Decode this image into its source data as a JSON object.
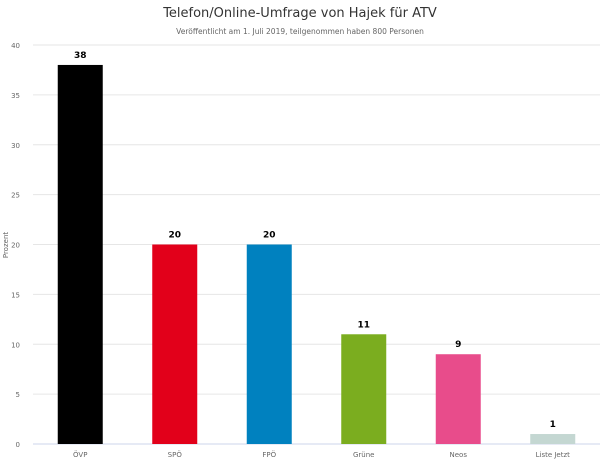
{
  "chart_data": {
    "type": "bar",
    "title": "Telefon/Online-Umfrage von Hajek für ATV",
    "subtitle": "Veröffentlicht am 1. Juli 2019, teilgenommen haben 800 Personen",
    "xlabel": "",
    "ylabel": "Prozent",
    "ylim": [
      0,
      40
    ],
    "yticks": [
      0,
      5,
      10,
      15,
      20,
      25,
      30,
      35,
      40
    ],
    "grid": true,
    "categories": [
      "ÖVP",
      "SPÖ",
      "FPÖ",
      "Grüne",
      "Neos",
      "Liste Jetzt"
    ],
    "values": [
      38,
      20,
      20,
      11,
      9,
      1
    ],
    "colors": [
      "#000000",
      "#e2001a",
      "#0081bf",
      "#7bad1f",
      "#e84c8b",
      "#c4d7d2"
    ]
  }
}
